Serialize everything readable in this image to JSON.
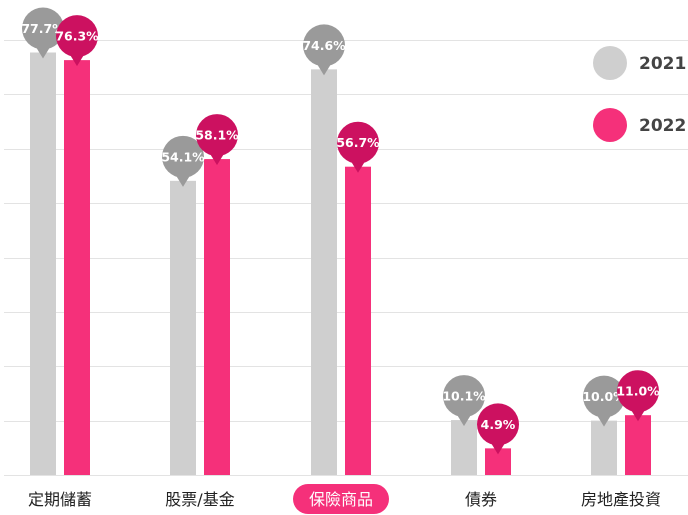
{
  "chart_data": {
    "type": "bar",
    "categories": [
      "定期儲蓄",
      "股票/基金",
      "保險商品",
      "債券",
      "房地產投資"
    ],
    "highlighted_category": "保險商品",
    "series": [
      {
        "name": "2021",
        "values": [
          77.7,
          54.1,
          74.6,
          10.1,
          10.0
        ],
        "labels": [
          "77.7%",
          "54.1%",
          "74.6%",
          "10.1%",
          "10.0%"
        ]
      },
      {
        "name": "2022",
        "values": [
          76.3,
          58.1,
          56.7,
          4.9,
          11.0
        ],
        "labels": [
          "76.3%",
          "58.1%",
          "56.7%",
          "4.9%",
          "11.0%"
        ]
      }
    ],
    "ylim": [
      0,
      80
    ],
    "grid": true,
    "legend_position": "top-right",
    "colors": {
      "bar_2021": "#cfcfcf",
      "bar_2022": "#f5307a",
      "bubble_2021": "#9a9a9a",
      "bubble_2022": "#cc1160",
      "grid": "#e3e3e3",
      "highlight_bg": "#f5307a",
      "legend_2021": "#cfcfcf",
      "legend_2022": "#f5307a"
    }
  }
}
